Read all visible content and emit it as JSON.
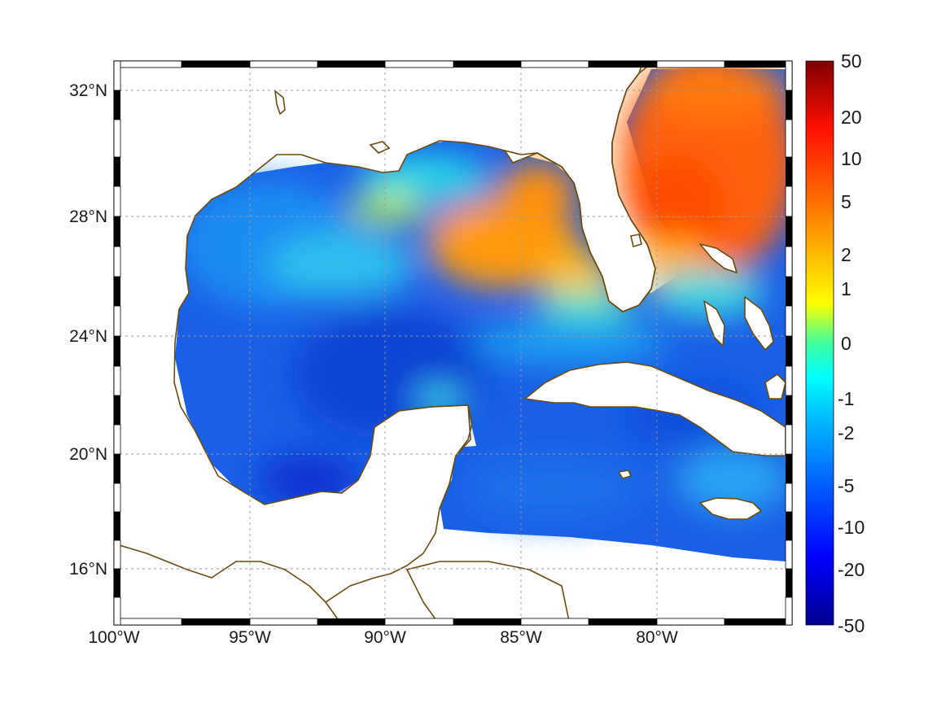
{
  "map": {
    "lon_labels": [
      "100°W",
      "95°W",
      "90°W",
      "85°W",
      "80°W"
    ],
    "lat_labels": [
      "32°N",
      "28°N",
      "24°N",
      "20°N",
      "16°N"
    ],
    "lon_ticks": [
      100,
      95,
      90,
      85,
      80
    ],
    "lat_ticks": [
      32,
      28,
      24,
      20,
      16
    ],
    "lon_range": [
      -100,
      -75
    ],
    "lat_range": [
      14.5,
      33
    ],
    "grid": true,
    "coastline_color": "#6b4a12",
    "features": [
      "gulf-of-mexico",
      "florida",
      "yucatan-peninsula",
      "cuba",
      "bahamas",
      "jamaica",
      "central-america"
    ]
  },
  "colorbar": {
    "labels": [
      "50",
      "20",
      "10",
      "5",
      "2",
      "1",
      "0",
      "-1",
      "-2",
      "-5",
      "-10",
      "-20",
      "-50"
    ],
    "colormap": "jet",
    "range": [
      -50,
      50
    ],
    "placement": "right"
  },
  "field": {
    "description_values": "warm values east of Florida and over the West Florida shelf, cold values across the central and southern Gulf and Caribbean"
  }
}
